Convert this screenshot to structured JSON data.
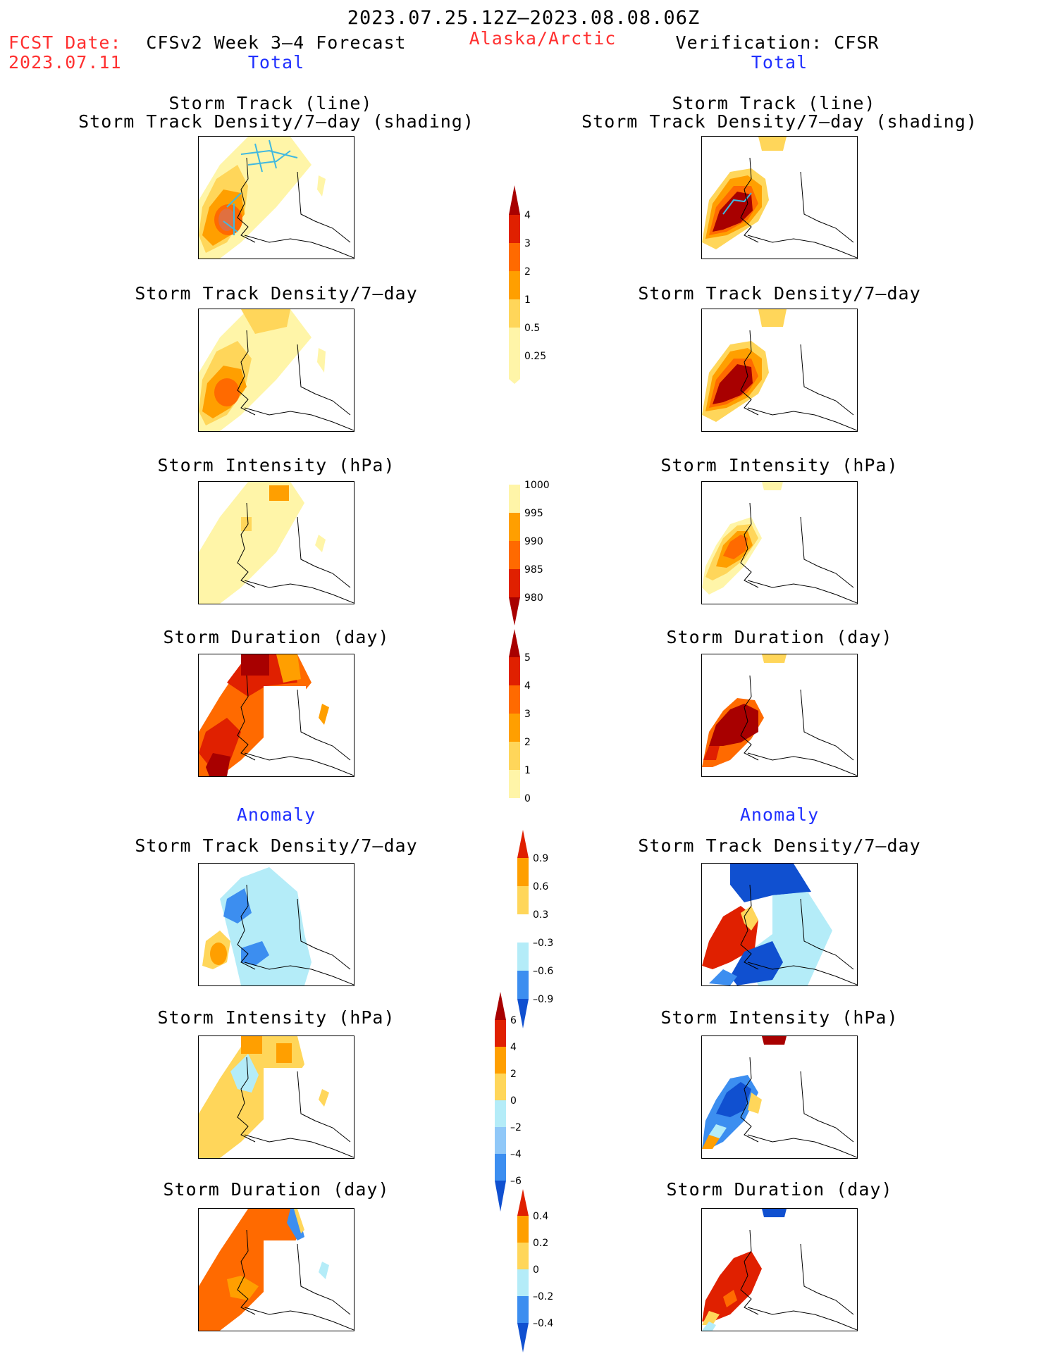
{
  "header": {
    "period": "2023.07.25.12Z–2023.08.08.06Z",
    "fcst_label": "FCST Date:",
    "fcst_date": "2023.07.11",
    "model": "CFSv2 Week 3–4 Forecast",
    "region": "Alaska/Arctic",
    "verification": "Verification: CFSR",
    "left_subtitle": "Total",
    "right_subtitle": "Total",
    "anomaly_left": "Anomaly",
    "anomaly_right": "Anomaly"
  },
  "panels": {
    "track_line": "Storm Track (line)",
    "track_shading": "Storm Track Density/7–day (shading)",
    "density": "Storm Track Density/7–day",
    "intensity": "Storm Intensity (hPa)",
    "duration": "Storm Duration (day)"
  },
  "colorbars": {
    "density": [
      "4",
      "3",
      "2",
      "1",
      "0.5",
      "0.25"
    ],
    "intensity": [
      "1000",
      "995",
      "990",
      "985",
      "980"
    ],
    "duration": [
      "5",
      "4",
      "3",
      "2",
      "1",
      "0"
    ],
    "density_anom": [
      "0.9",
      "0.6",
      "0.3",
      "–0.3",
      "–0.6",
      "–0.9"
    ],
    "intensity_anom": [
      "6",
      "4",
      "2",
      "0",
      "–2",
      "–4",
      "–6"
    ],
    "duration_anom": [
      "0.4",
      "0.2",
      "0",
      "–0.2",
      "–0.4"
    ]
  },
  "colors": {
    "text_red": "#ff3030",
    "text_blue": "#2030ff",
    "c_lightyellow": "#fff5a8",
    "c_yellow": "#ffd65a",
    "c_orange": "#ff9f00",
    "c_darkorange": "#ff6a00",
    "c_red": "#e02000",
    "c_darkred": "#a80000",
    "c_lightblue": "#b4ecf8",
    "c_blue": "#3c8ef0",
    "c_darkblue": "#1050d0"
  }
}
